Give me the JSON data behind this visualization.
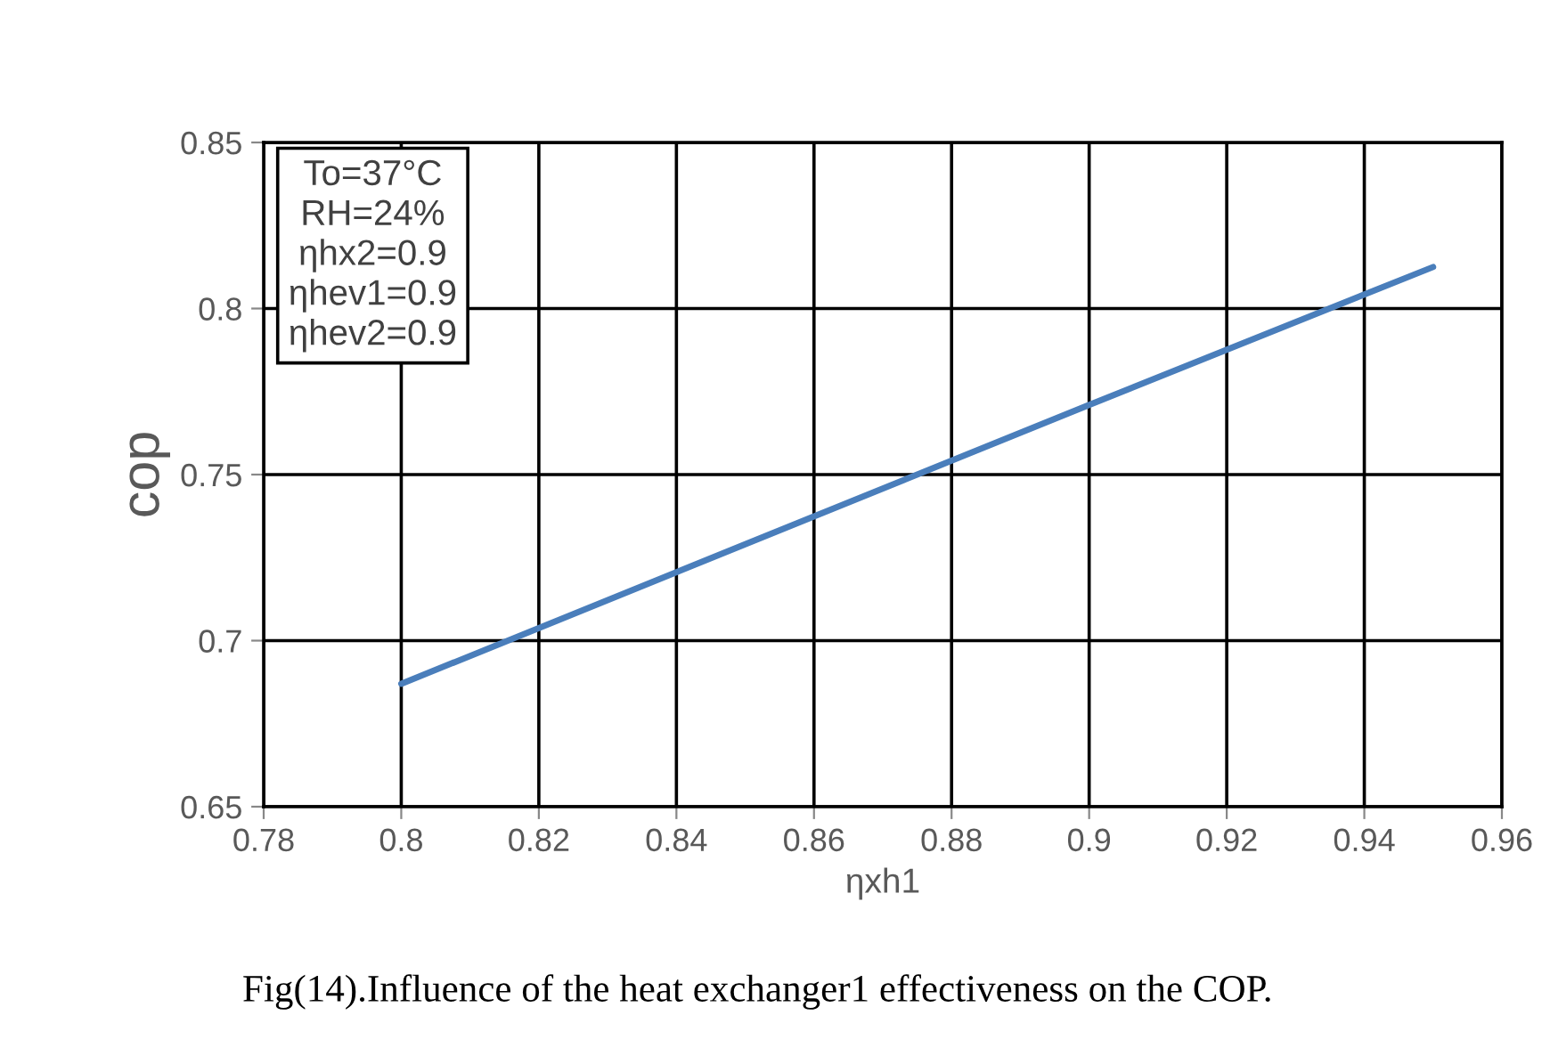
{
  "chart_data": {
    "type": "line",
    "xlabel": "ηxh1",
    "ylabel": "cop",
    "x": [
      0.8,
      0.85,
      0.9,
      0.95
    ],
    "series": [
      {
        "color": "#4a7ebb",
        "values": [
          0.687,
          0.729,
          0.771,
          0.8125
        ]
      }
    ],
    "xlim": [
      0.78,
      0.96
    ],
    "xticks": [
      0.78,
      0.8,
      0.82,
      0.84,
      0.86,
      0.88,
      0.9,
      0.92,
      0.94,
      0.96
    ],
    "ylim": [
      0.65,
      0.85
    ],
    "yticks": [
      0.65,
      0.7,
      0.75,
      0.8,
      0.85
    ],
    "grid": true,
    "legend": false,
    "marker": "none",
    "line_style": "solid",
    "annotations": [
      "To=37°C\nRH=24%\nηhx2=0.9\nηhev1=0.9\nηhev2=0.9",
      "Fig(14).Influence of the heat exchanger1 effectiveness on the COP."
    ]
  }
}
